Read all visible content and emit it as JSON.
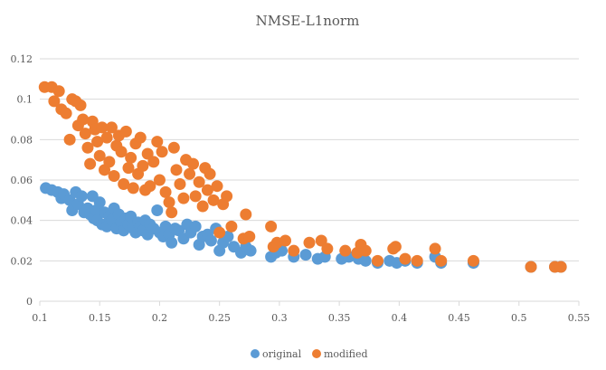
{
  "chart_data": {
    "type": "scatter",
    "title": "NMSE-L1norm",
    "xlabel": "",
    "ylabel": "",
    "xlim": [
      0.1,
      0.55
    ],
    "ylim": [
      0,
      0.12
    ],
    "x_ticks": [
      "0.1",
      "0.15",
      "0.2",
      "0.25",
      "0.3",
      "0.35",
      "0.4",
      "0.45",
      "0.5",
      "0.55"
    ],
    "y_ticks": [
      "0",
      "0.02",
      "0.04",
      "0.06",
      "0.08",
      "0.1",
      "0.12"
    ],
    "x_tick_values": [
      0.1,
      0.15,
      0.2,
      0.25,
      0.3,
      0.35,
      0.4,
      0.45,
      0.5,
      0.55
    ],
    "y_tick_values": [
      0,
      0.02,
      0.04,
      0.06,
      0.08,
      0.1,
      0.12
    ],
    "grid": "horizontal",
    "legend": "bottom",
    "series": [
      {
        "name": "original",
        "color": "#5b9bd5",
        "points": [
          [
            0.105,
            0.056
          ],
          [
            0.11,
            0.055
          ],
          [
            0.115,
            0.054
          ],
          [
            0.118,
            0.051
          ],
          [
            0.12,
            0.053
          ],
          [
            0.125,
            0.05
          ],
          [
            0.127,
            0.045
          ],
          [
            0.13,
            0.054
          ],
          [
            0.132,
            0.048
          ],
          [
            0.135,
            0.052
          ],
          [
            0.137,
            0.044
          ],
          [
            0.14,
            0.046
          ],
          [
            0.142,
            0.043
          ],
          [
            0.144,
            0.052
          ],
          [
            0.145,
            0.041
          ],
          [
            0.147,
            0.045
          ],
          [
            0.148,
            0.04
          ],
          [
            0.15,
            0.049
          ],
          [
            0.152,
            0.038
          ],
          [
            0.154,
            0.044
          ],
          [
            0.156,
            0.037
          ],
          [
            0.158,
            0.042
          ],
          [
            0.16,
            0.04
          ],
          [
            0.162,
            0.046
          ],
          [
            0.164,
            0.036
          ],
          [
            0.166,
            0.043
          ],
          [
            0.168,
            0.039
          ],
          [
            0.17,
            0.035
          ],
          [
            0.172,
            0.041
          ],
          [
            0.174,
            0.038
          ],
          [
            0.176,
            0.042
          ],
          [
            0.178,
            0.036
          ],
          [
            0.18,
            0.034
          ],
          [
            0.182,
            0.039
          ],
          [
            0.184,
            0.037
          ],
          [
            0.186,
            0.035
          ],
          [
            0.188,
            0.04
          ],
          [
            0.19,
            0.033
          ],
          [
            0.192,
            0.038
          ],
          [
            0.195,
            0.036
          ],
          [
            0.198,
            0.045
          ],
          [
            0.2,
            0.034
          ],
          [
            0.203,
            0.032
          ],
          [
            0.205,
            0.037
          ],
          [
            0.208,
            0.033
          ],
          [
            0.21,
            0.029
          ],
          [
            0.213,
            0.036
          ],
          [
            0.216,
            0.035
          ],
          [
            0.22,
            0.031
          ],
          [
            0.223,
            0.038
          ],
          [
            0.226,
            0.034
          ],
          [
            0.23,
            0.037
          ],
          [
            0.233,
            0.028
          ],
          [
            0.236,
            0.032
          ],
          [
            0.24,
            0.033
          ],
          [
            0.243,
            0.03
          ],
          [
            0.247,
            0.036
          ],
          [
            0.25,
            0.025
          ],
          [
            0.253,
            0.029
          ],
          [
            0.257,
            0.032
          ],
          [
            0.262,
            0.027
          ],
          [
            0.268,
            0.024
          ],
          [
            0.272,
            0.027
          ],
          [
            0.276,
            0.025
          ],
          [
            0.293,
            0.022
          ],
          [
            0.297,
            0.024
          ],
          [
            0.302,
            0.025
          ],
          [
            0.312,
            0.022
          ],
          [
            0.322,
            0.023
          ],
          [
            0.332,
            0.021
          ],
          [
            0.338,
            0.022
          ],
          [
            0.352,
            0.021
          ],
          [
            0.358,
            0.022
          ],
          [
            0.366,
            0.021
          ],
          [
            0.372,
            0.02
          ],
          [
            0.382,
            0.019
          ],
          [
            0.392,
            0.02
          ],
          [
            0.398,
            0.019
          ],
          [
            0.405,
            0.02
          ],
          [
            0.415,
            0.019
          ],
          [
            0.43,
            0.022
          ],
          [
            0.435,
            0.019
          ],
          [
            0.462,
            0.019
          ],
          [
            0.51,
            0.017
          ],
          [
            0.53,
            0.017
          ],
          [
            0.535,
            0.017
          ]
        ]
      },
      {
        "name": "modified",
        "color": "#ed7d31",
        "points": [
          [
            0.104,
            0.106
          ],
          [
            0.11,
            0.106
          ],
          [
            0.112,
            0.099
          ],
          [
            0.116,
            0.104
          ],
          [
            0.118,
            0.095
          ],
          [
            0.122,
            0.093
          ],
          [
            0.125,
            0.08
          ],
          [
            0.127,
            0.1
          ],
          [
            0.13,
            0.099
          ],
          [
            0.132,
            0.087
          ],
          [
            0.134,
            0.097
          ],
          [
            0.136,
            0.09
          ],
          [
            0.138,
            0.083
          ],
          [
            0.14,
            0.076
          ],
          [
            0.142,
            0.068
          ],
          [
            0.144,
            0.089
          ],
          [
            0.146,
            0.085
          ],
          [
            0.148,
            0.079
          ],
          [
            0.15,
            0.072
          ],
          [
            0.152,
            0.086
          ],
          [
            0.154,
            0.065
          ],
          [
            0.156,
            0.081
          ],
          [
            0.158,
            0.069
          ],
          [
            0.16,
            0.086
          ],
          [
            0.162,
            0.062
          ],
          [
            0.164,
            0.077
          ],
          [
            0.166,
            0.082
          ],
          [
            0.168,
            0.074
          ],
          [
            0.17,
            0.058
          ],
          [
            0.172,
            0.084
          ],
          [
            0.174,
            0.066
          ],
          [
            0.176,
            0.071
          ],
          [
            0.178,
            0.056
          ],
          [
            0.18,
            0.078
          ],
          [
            0.182,
            0.063
          ],
          [
            0.184,
            0.081
          ],
          [
            0.186,
            0.067
          ],
          [
            0.188,
            0.055
          ],
          [
            0.19,
            0.073
          ],
          [
            0.192,
            0.057
          ],
          [
            0.195,
            0.069
          ],
          [
            0.198,
            0.079
          ],
          [
            0.2,
            0.06
          ],
          [
            0.202,
            0.074
          ],
          [
            0.205,
            0.054
          ],
          [
            0.208,
            0.049
          ],
          [
            0.21,
            0.044
          ],
          [
            0.212,
            0.076
          ],
          [
            0.214,
            0.065
          ],
          [
            0.217,
            0.058
          ],
          [
            0.22,
            0.051
          ],
          [
            0.222,
            0.07
          ],
          [
            0.225,
            0.063
          ],
          [
            0.228,
            0.068
          ],
          [
            0.23,
            0.052
          ],
          [
            0.233,
            0.059
          ],
          [
            0.236,
            0.047
          ],
          [
            0.238,
            0.066
          ],
          [
            0.24,
            0.055
          ],
          [
            0.242,
            0.063
          ],
          [
            0.245,
            0.05
          ],
          [
            0.248,
            0.057
          ],
          [
            0.25,
            0.034
          ],
          [
            0.253,
            0.048
          ],
          [
            0.256,
            0.052
          ],
          [
            0.26,
            0.037
          ],
          [
            0.27,
            0.031
          ],
          [
            0.272,
            0.043
          ],
          [
            0.275,
            0.032
          ],
          [
            0.293,
            0.037
          ],
          [
            0.295,
            0.027
          ],
          [
            0.298,
            0.029
          ],
          [
            0.305,
            0.03
          ],
          [
            0.312,
            0.025
          ],
          [
            0.325,
            0.029
          ],
          [
            0.335,
            0.03
          ],
          [
            0.34,
            0.026
          ],
          [
            0.355,
            0.025
          ],
          [
            0.365,
            0.024
          ],
          [
            0.368,
            0.028
          ],
          [
            0.372,
            0.025
          ],
          [
            0.382,
            0.02
          ],
          [
            0.395,
            0.026
          ],
          [
            0.397,
            0.027
          ],
          [
            0.405,
            0.021
          ],
          [
            0.415,
            0.02
          ],
          [
            0.43,
            0.026
          ],
          [
            0.435,
            0.02
          ],
          [
            0.462,
            0.02
          ],
          [
            0.51,
            0.017
          ],
          [
            0.53,
            0.017
          ],
          [
            0.535,
            0.017
          ]
        ]
      }
    ]
  }
}
